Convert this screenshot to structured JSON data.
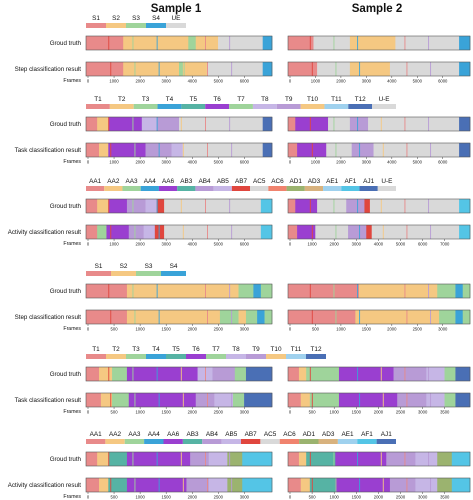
{
  "titles": {
    "sample1": "Sample 1",
    "sample2": "Sample 2"
  },
  "frames_label": "Frames",
  "colors": {
    "pink": "#e88a8a",
    "orange": "#f5c882",
    "green": "#9fd49b",
    "blue": "#3aa3d8",
    "grey": "#d9d9d9",
    "violet": "#9a3fd0",
    "purple": "#b89bd6",
    "lavender": "#c6b6e6",
    "teal": "#56b3a4",
    "navy": "#4a6fb5",
    "red": "#e0463e",
    "cyan": "#54c5e6",
    "olive": "#9bb36f",
    "lightblue": "#9fd1ee",
    "tan": "#d8b27e",
    "salmon": "#f0836e"
  },
  "label_sets": {
    "step": [
      "S1",
      "S2",
      "S3",
      "S4",
      "UE"
    ],
    "step_short": [
      "S1",
      "S2",
      "S3",
      "S4"
    ],
    "task": [
      "T1",
      "T2",
      "T3",
      "T4",
      "T5",
      "T6",
      "T7",
      "T8",
      "T9",
      "T10",
      "T11",
      "T12",
      "U-E"
    ],
    "task_short": [
      "T1",
      "T2",
      "T3",
      "T4",
      "T5",
      "T6",
      "T7",
      "T8",
      "T9",
      "T10",
      "T11",
      "T12"
    ],
    "activity": [
      "AA1",
      "AA2",
      "AA3",
      "AA4",
      "AA6",
      "AB3",
      "AB4",
      "AB5",
      "AB7",
      "AC5",
      "AC6",
      "AD1",
      "AD3",
      "AE1",
      "AF1",
      "AJ1",
      "U-E"
    ],
    "activity_short": [
      "AA1",
      "AA2",
      "AA3",
      "AA4",
      "AA6",
      "AB3",
      "AB4",
      "AB5",
      "AB7",
      "AC5",
      "AC6",
      "AD1",
      "AD3",
      "AE1",
      "AF1",
      "AJ1"
    ]
  },
  "label_colors": {
    "step": [
      "pink",
      "orange",
      "green",
      "blue",
      "grey"
    ],
    "task": [
      "pink",
      "orange",
      "green",
      "blue",
      "teal",
      "violet",
      "green",
      "lavender",
      "purple",
      "orange",
      "lightblue",
      "navy",
      "grey"
    ],
    "activity": [
      "pink",
      "orange",
      "green",
      "blue",
      "violet",
      "teal",
      "purple",
      "lavender",
      "red",
      "grey",
      "salmon",
      "olive",
      "tan",
      "lightblue",
      "cyan",
      "navy",
      "grey"
    ]
  },
  "panels": [
    {
      "legend": "step",
      "rows": [
        "Groud truth",
        "Step classification result"
      ],
      "s1_ticks": [
        "0",
        "1000",
        "2000",
        "3000",
        "4000",
        "5000",
        "6000"
      ],
      "s2_ticks": [
        "0",
        "1000",
        "2000",
        "3000",
        "4000",
        "5000",
        "6000"
      ],
      "s1_segments": [
        [
          [
            "pink",
            0.2
          ],
          [
            "orange",
            0.35
          ],
          [
            "green",
            0.04
          ],
          [
            "orange",
            0.12
          ],
          [
            "grey",
            0.24
          ],
          [
            "blue",
            0.05
          ]
        ],
        [
          [
            "pink",
            0.2
          ],
          [
            "orange",
            0.3
          ],
          [
            "green",
            0.03
          ],
          [
            "orange",
            0.12
          ],
          [
            "grey",
            0.3
          ],
          [
            "blue",
            0.05
          ]
        ]
      ],
      "s2_segments": [
        [
          [
            "pink",
            0.14
          ],
          [
            "grey",
            0.2
          ],
          [
            "orange",
            0.25
          ],
          [
            "grey",
            0.35
          ],
          [
            "blue",
            0.06
          ]
        ],
        [
          [
            "pink",
            0.16
          ],
          [
            "grey",
            0.18
          ],
          [
            "orange",
            0.22
          ],
          [
            "grey",
            0.38
          ],
          [
            "blue",
            0.06
          ]
        ]
      ]
    },
    {
      "legend": "task",
      "rows": [
        "Groud truth",
        "Task classification result"
      ],
      "s1_ticks": [
        "0",
        "1000",
        "2000",
        "3000",
        "4000",
        "5000",
        "6000"
      ],
      "s2_ticks": [
        "0",
        "1000",
        "2000",
        "3000",
        "4000",
        "5000",
        "6000"
      ],
      "s1_segments": [
        [
          [
            "pink",
            0.06
          ],
          [
            "orange",
            0.06
          ],
          [
            "violet",
            0.18
          ],
          [
            "lavender",
            0.08
          ],
          [
            "purple",
            0.12
          ],
          [
            "grey",
            0.45
          ],
          [
            "navy",
            0.05
          ]
        ],
        [
          [
            "pink",
            0.07
          ],
          [
            "orange",
            0.05
          ],
          [
            "violet",
            0.2
          ],
          [
            "purple",
            0.14
          ],
          [
            "lavender",
            0.06
          ],
          [
            "grey",
            0.43
          ],
          [
            "navy",
            0.05
          ]
        ]
      ],
      "s2_segments": [
        [
          [
            "pink",
            0.04
          ],
          [
            "violet",
            0.18
          ],
          [
            "grey",
            0.12
          ],
          [
            "purple",
            0.1
          ],
          [
            "grey",
            0.5
          ],
          [
            "navy",
            0.06
          ]
        ],
        [
          [
            "pink",
            0.05
          ],
          [
            "violet",
            0.16
          ],
          [
            "grey",
            0.14
          ],
          [
            "purple",
            0.12
          ],
          [
            "grey",
            0.47
          ],
          [
            "navy",
            0.06
          ]
        ]
      ]
    },
    {
      "legend": "activity",
      "rows": [
        "Groud truth",
        "Activity classification result"
      ],
      "s1_ticks": [
        "0",
        "1000",
        "2000",
        "3000",
        "4000",
        "5000",
        "6000"
      ],
      "s2_ticks": [
        "0",
        "1000",
        "2000",
        "3000",
        "4000",
        "5000",
        "6000",
        "7000"
      ],
      "s1_segments": [
        [
          [
            "pink",
            0.06
          ],
          [
            "orange",
            0.06
          ],
          [
            "violet",
            0.1
          ],
          [
            "purple",
            0.1
          ],
          [
            "lavender",
            0.06
          ],
          [
            "red",
            0.04
          ],
          [
            "grey",
            0.52
          ],
          [
            "cyan",
            0.06
          ]
        ],
        [
          [
            "pink",
            0.06
          ],
          [
            "green",
            0.05
          ],
          [
            "violet",
            0.12
          ],
          [
            "purple",
            0.08
          ],
          [
            "lavender",
            0.06
          ],
          [
            "red",
            0.05
          ],
          [
            "grey",
            0.52
          ],
          [
            "cyan",
            0.06
          ]
        ]
      ],
      "s2_segments": [
        [
          [
            "pink",
            0.04
          ],
          [
            "violet",
            0.12
          ],
          [
            "grey",
            0.16
          ],
          [
            "purple",
            0.1
          ],
          [
            "red",
            0.03
          ],
          [
            "grey",
            0.49
          ],
          [
            "cyan",
            0.06
          ]
        ],
        [
          [
            "pink",
            0.05
          ],
          [
            "violet",
            0.1
          ],
          [
            "grey",
            0.18
          ],
          [
            "purple",
            0.1
          ],
          [
            "red",
            0.03
          ],
          [
            "grey",
            0.48
          ],
          [
            "cyan",
            0.06
          ]
        ]
      ]
    },
    {
      "legend": "step_short",
      "rows": [
        "Groud truth",
        "Step classification result"
      ],
      "s1_ticks": [
        "0",
        "500",
        "1000",
        "1500",
        "2000",
        "2500",
        "3000"
      ],
      "s2_ticks": [
        "0",
        "500",
        "1000",
        "1500",
        "2000",
        "2500",
        "3000"
      ],
      "s1_segments": [
        [
          [
            "pink",
            0.22
          ],
          [
            "orange",
            0.6
          ],
          [
            "green",
            0.08
          ],
          [
            "blue",
            0.04
          ],
          [
            "green",
            0.06
          ]
        ],
        [
          [
            "pink",
            0.22
          ],
          [
            "orange",
            0.5
          ],
          [
            "green",
            0.1
          ],
          [
            "orange",
            0.04
          ],
          [
            "green",
            0.06
          ],
          [
            "blue",
            0.04
          ],
          [
            "green",
            0.04
          ]
        ]
      ],
      "s2_segments": [
        [
          [
            "pink",
            0.39
          ],
          [
            "orange",
            0.43
          ],
          [
            "green",
            0.1
          ],
          [
            "blue",
            0.04
          ],
          [
            "green",
            0.04
          ]
        ],
        [
          [
            "pink",
            0.37
          ],
          [
            "orange",
            0.46
          ],
          [
            "green",
            0.09
          ],
          [
            "blue",
            0.04
          ],
          [
            "green",
            0.04
          ]
        ]
      ]
    },
    {
      "legend": "task_short",
      "rows": [
        "Groud truth",
        "Task classification result"
      ],
      "s1_ticks": [
        "0",
        "500",
        "1000",
        "1500",
        "2000",
        "2500",
        "3000"
      ],
      "s2_ticks": [
        "0",
        "500",
        "1000",
        "1500",
        "2000",
        "2500",
        "3000",
        "3500"
      ],
      "s1_segments": [
        [
          [
            "pink",
            0.07
          ],
          [
            "orange",
            0.07
          ],
          [
            "green",
            0.08
          ],
          [
            "violet",
            0.38
          ],
          [
            "lavender",
            0.08
          ],
          [
            "purple",
            0.12
          ],
          [
            "green",
            0.06
          ],
          [
            "navy",
            0.14
          ]
        ],
        [
          [
            "pink",
            0.08
          ],
          [
            "orange",
            0.06
          ],
          [
            "green",
            0.09
          ],
          [
            "violet",
            0.36
          ],
          [
            "purple",
            0.1
          ],
          [
            "lavender",
            0.1
          ],
          [
            "green",
            0.06
          ],
          [
            "navy",
            0.15
          ]
        ]
      ],
      "s2_segments": [
        [
          [
            "pink",
            0.06
          ],
          [
            "orange",
            0.04
          ],
          [
            "green",
            0.18
          ],
          [
            "violet",
            0.3
          ],
          [
            "purple",
            0.18
          ],
          [
            "lavender",
            0.1
          ],
          [
            "green",
            0.06
          ],
          [
            "navy",
            0.08
          ]
        ],
        [
          [
            "pink",
            0.07
          ],
          [
            "orange",
            0.05
          ],
          [
            "green",
            0.16
          ],
          [
            "violet",
            0.32
          ],
          [
            "purple",
            0.16
          ],
          [
            "lavender",
            0.1
          ],
          [
            "green",
            0.06
          ],
          [
            "navy",
            0.08
          ]
        ]
      ]
    },
    {
      "legend": "activity_short",
      "rows": [
        "Groud truth",
        "Activity classification result"
      ],
      "s1_ticks": [
        "0",
        "500",
        "1000",
        "1500",
        "2000",
        "2500",
        "3000"
      ],
      "s2_ticks": [
        "0",
        "500",
        "1000",
        "1500",
        "2000",
        "2500",
        "3000",
        "3500"
      ],
      "s1_segments": [
        [
          [
            "pink",
            0.06
          ],
          [
            "orange",
            0.06
          ],
          [
            "teal",
            0.1
          ],
          [
            "violet",
            0.34
          ],
          [
            "purple",
            0.1
          ],
          [
            "lavender",
            0.1
          ],
          [
            "olive",
            0.08
          ],
          [
            "cyan",
            0.16
          ]
        ],
        [
          [
            "pink",
            0.07
          ],
          [
            "orange",
            0.05
          ],
          [
            "teal",
            0.1
          ],
          [
            "violet",
            0.32
          ],
          [
            "purple",
            0.12
          ],
          [
            "lavender",
            0.1
          ],
          [
            "olive",
            0.08
          ],
          [
            "cyan",
            0.16
          ]
        ]
      ],
      "s2_segments": [
        [
          [
            "pink",
            0.06
          ],
          [
            "orange",
            0.04
          ],
          [
            "teal",
            0.16
          ],
          [
            "violet",
            0.28
          ],
          [
            "purple",
            0.16
          ],
          [
            "lavender",
            0.12
          ],
          [
            "olive",
            0.08
          ],
          [
            "cyan",
            0.1
          ]
        ],
        [
          [
            "pink",
            0.07
          ],
          [
            "orange",
            0.05
          ],
          [
            "teal",
            0.14
          ],
          [
            "violet",
            0.3
          ],
          [
            "purple",
            0.14
          ],
          [
            "lavender",
            0.12
          ],
          [
            "olive",
            0.08
          ],
          [
            "cyan",
            0.1
          ]
        ]
      ]
    }
  ]
}
